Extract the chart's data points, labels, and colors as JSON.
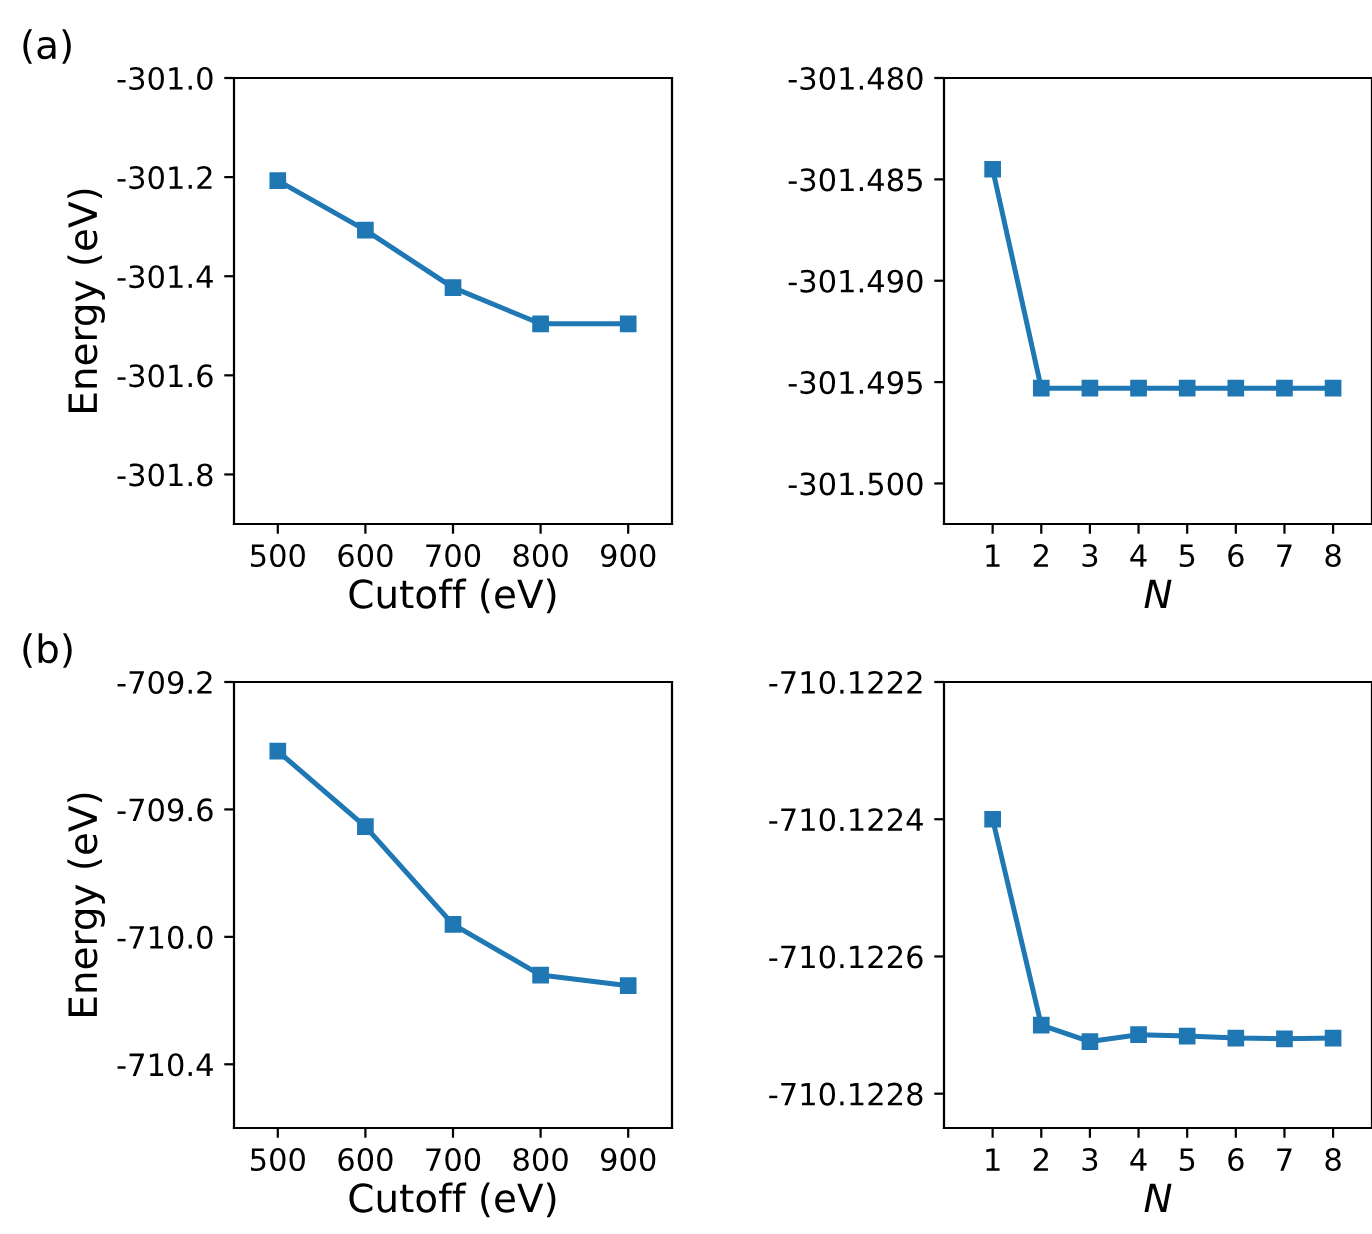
{
  "chart_data": [
    {
      "type": "line",
      "annotations": [
        "(a)"
      ],
      "xlabel": "Cutoff (eV)",
      "ylabel": "Energy (eV)",
      "x": [
        500,
        600,
        700,
        800,
        900
      ],
      "series": [
        {
          "color": "#1f77b4",
          "values": [
            -301.207,
            -301.307,
            -301.423,
            -301.496,
            -301.496
          ]
        }
      ],
      "xlim": [
        450,
        950
      ],
      "ylim": [
        -301.9,
        -301.0
      ],
      "xticks": [
        500,
        600,
        700,
        800,
        900
      ],
      "yticks": [
        {
          "value": -301.8,
          "label": "-301.8"
        },
        {
          "value": -301.6,
          "label": "-301.6"
        },
        {
          "value": -301.4,
          "label": "-301.4"
        },
        {
          "value": -301.2,
          "label": "-301.2"
        },
        {
          "value": -301.0,
          "label": "-301.0"
        }
      ],
      "marker": "square",
      "line_style": "solid",
      "grid": false
    },
    {
      "type": "line",
      "xlabel": "N",
      "x": [
        1,
        2,
        3,
        4,
        5,
        6,
        7,
        8
      ],
      "series": [
        {
          "color": "#1f77b4",
          "values": [
            -301.4845,
            -301.4953,
            -301.4953,
            -301.4953,
            -301.4953,
            -301.4953,
            -301.4953,
            -301.4953
          ]
        }
      ],
      "xlim": [
        0,
        8.8
      ],
      "ylim": [
        -301.502,
        -301.48
      ],
      "xticks": [
        1,
        2,
        3,
        4,
        5,
        6,
        7,
        8
      ],
      "yticks": [
        {
          "value": -301.5,
          "label": "-301.500"
        },
        {
          "value": -301.495,
          "label": "-301.495"
        },
        {
          "value": -301.49,
          "label": "-301.490"
        },
        {
          "value": -301.485,
          "label": "-301.485"
        },
        {
          "value": -301.48,
          "label": "-301.480"
        }
      ],
      "marker": "square",
      "line_style": "solid",
      "grid": false
    },
    {
      "type": "line",
      "annotations": [
        "(b)"
      ],
      "xlabel": "Cutoff (eV)",
      "ylabel": "Energy (eV)",
      "x": [
        500,
        600,
        700,
        800,
        900
      ],
      "series": [
        {
          "color": "#1f77b4",
          "values": [
            -709.417,
            -709.654,
            -709.961,
            -710.12,
            -710.153
          ]
        }
      ],
      "xlim": [
        450,
        950
      ],
      "ylim": [
        -710.6,
        -709.2
      ],
      "xticks": [
        500,
        600,
        700,
        800,
        900
      ],
      "yticks": [
        {
          "value": -710.4,
          "label": "-710.4"
        },
        {
          "value": -710.0,
          "label": "-710.0"
        },
        {
          "value": -709.6,
          "label": "-709.6"
        },
        {
          "value": -709.2,
          "label": "-709.2"
        }
      ],
      "marker": "square",
      "line_style": "solid",
      "grid": false
    },
    {
      "type": "line",
      "xlabel": "N",
      "x": [
        1,
        2,
        3,
        4,
        5,
        6,
        7,
        8
      ],
      "series": [
        {
          "color": "#1f77b4",
          "values": [
            -710.1224,
            -710.1227,
            -710.122724,
            -710.122714,
            -710.122716,
            -710.122719,
            -710.12272,
            -710.122719
          ]
        }
      ],
      "xlim": [
        0,
        8.8
      ],
      "ylim": [
        -710.12285,
        -710.1222
      ],
      "xticks": [
        1,
        2,
        3,
        4,
        5,
        6,
        7,
        8
      ],
      "yticks": [
        {
          "value": -710.1228,
          "label": "-710.1228"
        },
        {
          "value": -710.1226,
          "label": "-710.1226"
        },
        {
          "value": -710.1224,
          "label": "-710.1224"
        },
        {
          "value": -710.1222,
          "label": "-710.1222"
        }
      ],
      "marker": "square",
      "line_style": "solid",
      "grid": false
    }
  ]
}
